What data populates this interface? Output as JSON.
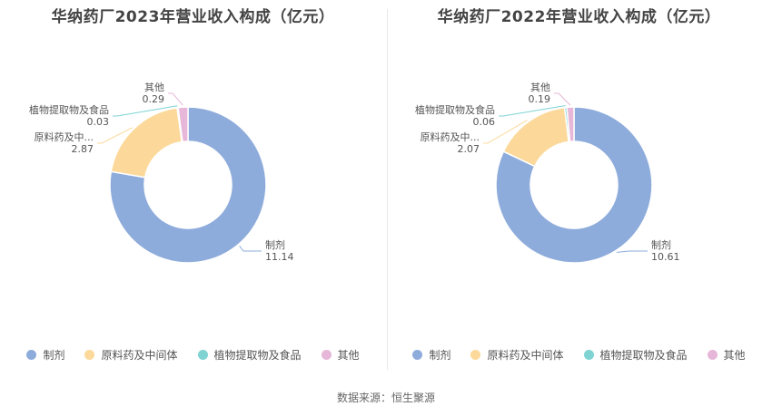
{
  "colors": {
    "制剂": "#8eacdb",
    "原料药及中间体": "#fcd99a",
    "植物提取物及食品": "#7fd3d3",
    "其他": "#e6b7d8"
  },
  "chart_data": [
    {
      "type": "pie",
      "title": "华纳药厂2023年营业收入构成（亿元）",
      "categories": [
        "制剂",
        "原料药及中间体",
        "植物提取物及食品",
        "其他"
      ],
      "values": [
        11.14,
        2.87,
        0.03,
        0.29
      ],
      "value_labels": [
        "11.14",
        "2.87",
        "0.03",
        "0.29"
      ],
      "slice_labels": [
        "制剂",
        "原料药及中...",
        "植物提取物及食品",
        "其他"
      ],
      "legend": [
        "制剂",
        "原料药及中间体",
        "植物提取物及食品",
        "其他"
      ],
      "legend_position": "bottom"
    },
    {
      "type": "pie",
      "title": "华纳药厂2022年营业收入构成（亿元）",
      "categories": [
        "制剂",
        "原料药及中间体",
        "植物提取物及食品",
        "其他"
      ],
      "values": [
        10.61,
        2.07,
        0.06,
        0.19
      ],
      "value_labels": [
        "10.61",
        "2.07",
        "0.06",
        "0.19"
      ],
      "slice_labels": [
        "制剂",
        "原料药及中...",
        "植物提取物及食品",
        "其他"
      ],
      "legend": [
        "制剂",
        "原料药及中间体",
        "植物提取物及食品",
        "其他"
      ],
      "legend_position": "bottom"
    }
  ],
  "source": "数据来源：恒生聚源"
}
